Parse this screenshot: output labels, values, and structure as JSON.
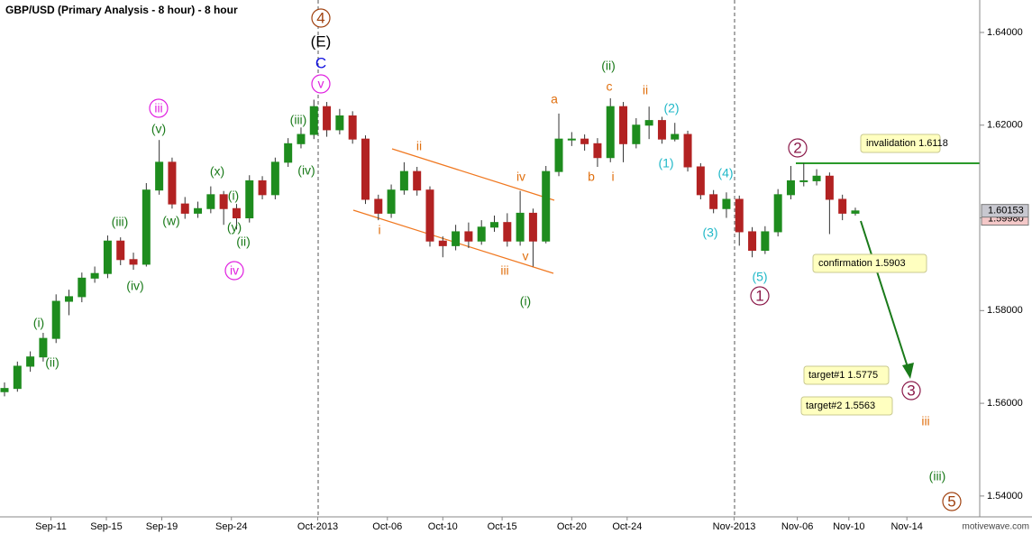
{
  "chart_data": {
    "type": "candlestick",
    "title": "GBP/USD (Primary Analysis - 8 hour) - 8 hour",
    "x": [
      0,
      1,
      2,
      3,
      4,
      5,
      6,
      7,
      8,
      9,
      10,
      11,
      12,
      13,
      14,
      15,
      16,
      17,
      18,
      19,
      20,
      21,
      22,
      23,
      24,
      25,
      26,
      27,
      28,
      29,
      30,
      31,
      32,
      33,
      34,
      35,
      36,
      37,
      38,
      39,
      40,
      41,
      42,
      43,
      44,
      45,
      46,
      47,
      48,
      49,
      50,
      51,
      52,
      53,
      54,
      55,
      56,
      57,
      58,
      59,
      60,
      61,
      62,
      63,
      64,
      65,
      66
    ],
    "open": [
      1.5625,
      1.5632,
      1.568,
      1.57,
      1.574,
      1.582,
      1.583,
      1.587,
      1.588,
      1.595,
      1.591,
      1.59,
      1.606,
      1.612,
      1.603,
      1.601,
      1.602,
      1.605,
      1.602,
      1.6,
      1.608,
      1.605,
      1.612,
      1.616,
      1.618,
      1.624,
      1.619,
      1.622,
      1.617,
      1.604,
      1.601,
      1.606,
      1.61,
      1.606,
      1.595,
      1.594,
      1.597,
      1.595,
      1.598,
      1.599,
      1.595,
      1.601,
      1.595,
      1.61,
      1.617,
      1.617,
      1.616,
      1.613,
      1.624,
      1.616,
      1.62,
      1.621,
      1.617,
      1.618,
      1.611,
      1.605,
      1.602,
      1.604,
      1.597,
      1.593,
      1.597,
      1.605,
      1.608,
      1.608,
      1.609,
      1.604,
      1.601
    ],
    "high": [
      1.5645,
      1.569,
      1.5712,
      1.5752,
      1.5835,
      1.5845,
      1.5882,
      1.5895,
      1.5962,
      1.5958,
      1.5925,
      1.6075,
      1.6168,
      1.613,
      1.6045,
      1.6035,
      1.6068,
      1.6058,
      1.603,
      1.6092,
      1.609,
      1.613,
      1.6172,
      1.6195,
      1.6255,
      1.625,
      1.6235,
      1.623,
      1.6178,
      1.605,
      1.6072,
      1.612,
      1.611,
      1.6068,
      1.596,
      1.5985,
      1.599,
      1.5995,
      1.6005,
      1.601,
      1.6058,
      1.602,
      1.6112,
      1.6225,
      1.6185,
      1.618,
      1.6172,
      1.6258,
      1.625,
      1.6215,
      1.624,
      1.6218,
      1.6205,
      1.6188,
      1.6118,
      1.606,
      1.6055,
      1.6048,
      1.598,
      1.5982,
      1.6062,
      1.6112,
      1.6118,
      1.6105,
      1.6098,
      1.605,
      1.6022
    ],
    "low": [
      1.5615,
      1.5625,
      1.5668,
      1.569,
      1.573,
      1.579,
      1.5818,
      1.586,
      1.587,
      1.5898,
      1.5888,
      1.5895,
      1.605,
      1.602,
      1.5998,
      1.6,
      1.601,
      1.5985,
      1.5975,
      1.599,
      1.604,
      1.604,
      1.611,
      1.615,
      1.617,
      1.6175,
      1.618,
      1.616,
      1.603,
      1.5995,
      1.6,
      1.605,
      1.6048,
      1.5938,
      1.5915,
      1.593,
      1.5935,
      1.5942,
      1.597,
      1.5938,
      1.594,
      1.5895,
      1.5945,
      1.609,
      1.6155,
      1.6145,
      1.611,
      1.612,
      1.612,
      1.615,
      1.617,
      1.616,
      1.6165,
      1.61,
      1.604,
      1.601,
      1.6,
      1.594,
      1.5915,
      1.5922,
      1.596,
      1.604,
      1.6068,
      1.607,
      1.5965,
      1.5995,
      1.6005
    ],
    "close": [
      1.5632,
      1.568,
      1.57,
      1.574,
      1.582,
      1.583,
      1.587,
      1.588,
      1.595,
      1.591,
      1.59,
      1.606,
      1.612,
      1.603,
      1.601,
      1.602,
      1.605,
      1.602,
      1.6,
      1.608,
      1.605,
      1.612,
      1.616,
      1.618,
      1.624,
      1.619,
      1.622,
      1.617,
      1.604,
      1.601,
      1.606,
      1.61,
      1.606,
      1.595,
      1.594,
      1.597,
      1.595,
      1.598,
      1.599,
      1.595,
      1.601,
      1.595,
      1.61,
      1.617,
      1.617,
      1.616,
      1.613,
      1.624,
      1.616,
      1.62,
      1.621,
      1.617,
      1.618,
      1.611,
      1.605,
      1.602,
      1.604,
      1.597,
      1.593,
      1.597,
      1.605,
      1.608,
      1.608,
      1.609,
      1.604,
      1.601,
      1.6015
    ],
    "up_color": "#1e8c1e",
    "down_color": "#b22222",
    "xlim": [
      -0.35,
      75.65
    ],
    "xticks": [
      {
        "value": 3.6,
        "label": "Sep-11"
      },
      {
        "value": 7.9,
        "label": "Sep-15"
      },
      {
        "value": 12.2,
        "label": "Sep-19"
      },
      {
        "value": 17.6,
        "label": "Sep-24"
      },
      {
        "value": 24.3,
        "label": "Oct-2013"
      },
      {
        "value": 29.7,
        "label": "Oct-06"
      },
      {
        "value": 34.0,
        "label": "Oct-10"
      },
      {
        "value": 38.6,
        "label": "Oct-15"
      },
      {
        "value": 44.0,
        "label": "Oct-20"
      },
      {
        "value": 48.3,
        "label": "Oct-24"
      },
      {
        "value": 56.6,
        "label": "Nov-2013"
      },
      {
        "value": 61.5,
        "label": "Nov-06"
      },
      {
        "value": 65.5,
        "label": "Nov-10"
      },
      {
        "value": 70.0,
        "label": "Nov-14"
      }
    ],
    "ylim": [
      1.5355,
      1.647
    ],
    "yticks": [
      {
        "value": 1.54,
        "label": "1.54000"
      },
      {
        "value": 1.56,
        "label": "1.56000"
      },
      {
        "value": 1.58,
        "label": "1.58000"
      },
      {
        "value": 1.6,
        "label": "1.60000"
      },
      {
        "value": 1.62,
        "label": "1.62000"
      },
      {
        "value": 1.64,
        "label": "1.64000"
      }
    ],
    "price_labels": [
      {
        "value": 1.5998,
        "label": "1.59980",
        "color": "#f4c8c8"
      },
      {
        "value": 1.60153,
        "label": "1.60153",
        "color": "#c8c8d0"
      }
    ],
    "callouts": [
      "invalidation 1.6118",
      "confirmation 1.5903",
      "target#1 1.5775",
      "target#2  1.5563"
    ],
    "annotations": [
      {
        "text": "4",
        "color": "#a0410f",
        "circled": true
      },
      {
        "text": "(E)",
        "color": "#000000",
        "circled": false
      },
      {
        "text": "C",
        "color": "#1010e0",
        "circled": false
      },
      {
        "text": "v",
        "color": "#e020e0",
        "circled": true
      },
      {
        "text": "iii",
        "color": "#e020e0",
        "circled": true
      },
      {
        "text": "(v)",
        "color": "#1a7a1a",
        "circled": false
      },
      {
        "text": "(iii)",
        "color": "#1a7a1a",
        "circled": false
      },
      {
        "text": "(iv)",
        "color": "#1a7a1a",
        "circled": false
      },
      {
        "text": "(x)",
        "color": "#1a7a1a",
        "circled": false
      },
      {
        "text": "(i)",
        "color": "#1a7a1a",
        "circled": false
      },
      {
        "text": "(w)",
        "color": "#1a7a1a",
        "circled": false
      },
      {
        "text": "(y)",
        "color": "#1a7a1a",
        "circled": false
      },
      {
        "text": "(ii)",
        "color": "#1a7a1a",
        "circled": false
      },
      {
        "text": "iv",
        "color": "#e020e0",
        "circled": true
      },
      {
        "text": "(iii)",
        "color": "#1a7a1a",
        "circled": false
      },
      {
        "text": "(iv)",
        "color": "#1a7a1a",
        "circled": false
      },
      {
        "text": "(i)",
        "color": "#1a7a1a",
        "circled": false
      },
      {
        "text": "(ii)",
        "color": "#1a7a1a",
        "circled": false
      },
      {
        "text": "ii",
        "color": "#e07010",
        "circled": false
      },
      {
        "text": "i",
        "color": "#e07010",
        "circled": false
      },
      {
        "text": "iv",
        "color": "#e07010",
        "circled": false
      },
      {
        "text": "iii",
        "color": "#e07010",
        "circled": false
      },
      {
        "text": "v",
        "color": "#e07010",
        "circled": false
      },
      {
        "text": "(i)",
        "color": "#1a7a1a",
        "circled": false
      },
      {
        "text": "a",
        "color": "#e07010",
        "circled": false
      },
      {
        "text": "(ii)",
        "color": "#1a7a1a",
        "circled": false
      },
      {
        "text": "c",
        "color": "#e07010",
        "circled": false
      },
      {
        "text": "ii",
        "color": "#e07010",
        "circled": false
      },
      {
        "text": "b",
        "color": "#e07010",
        "circled": false
      },
      {
        "text": "i",
        "color": "#e07010",
        "circled": false
      },
      {
        "text": "(2)",
        "color": "#20b8c8",
        "circled": false
      },
      {
        "text": "(1)",
        "color": "#20b8c8",
        "circled": false
      },
      {
        "text": "(4)",
        "color": "#20b8c8",
        "circled": false
      },
      {
        "text": "(3)",
        "color": "#20b8c8",
        "circled": false
      },
      {
        "text": "(5)",
        "color": "#20b8c8",
        "circled": false
      },
      {
        "text": "1",
        "color": "#8b1a4a",
        "circled": true
      },
      {
        "text": "2",
        "color": "#8b1a4a",
        "circled": true
      },
      {
        "text": "3",
        "color": "#8b1a4a",
        "circled": true
      },
      {
        "text": "iii",
        "color": "#e07010",
        "circled": false
      },
      {
        "text": "(iii)",
        "color": "#1a7a1a",
        "circled": false
      },
      {
        "text": "5",
        "color": "#a0410f",
        "circled": true
      }
    ],
    "watermark": "motivewave.com"
  }
}
